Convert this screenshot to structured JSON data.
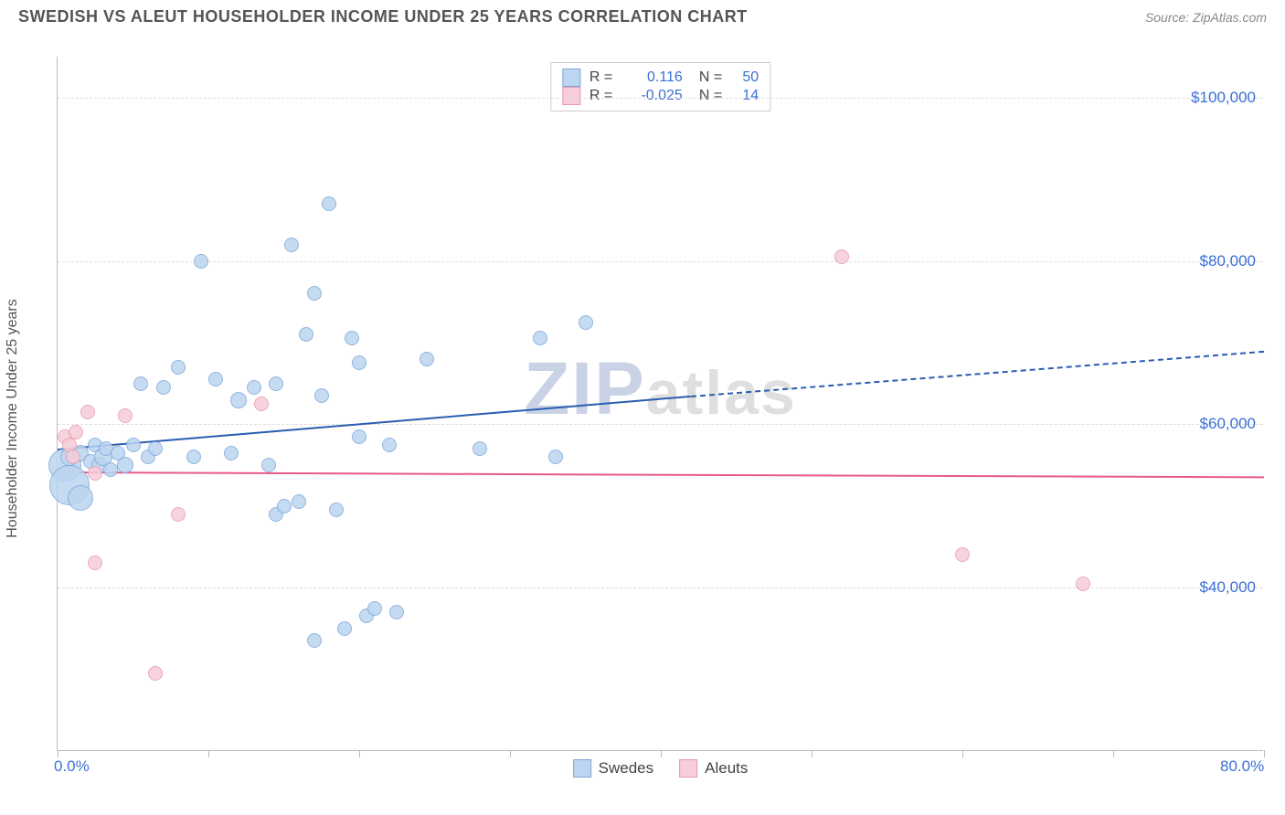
{
  "header": {
    "title": "SWEDISH VS ALEUT HOUSEHOLDER INCOME UNDER 25 YEARS CORRELATION CHART",
    "source": "Source: ZipAtlas.com",
    "watermark_z": "ZIP",
    "watermark_rest": "atlas"
  },
  "chart": {
    "type": "scatter",
    "ylabel": "Householder Income Under 25 years",
    "xlim": [
      0,
      80
    ],
    "ylim": [
      20000,
      105000
    ],
    "x_ticks": [
      0,
      10,
      20,
      30,
      40,
      50,
      60,
      70,
      80
    ],
    "x_tick_labels": {
      "0": "0.0%",
      "80": "80.0%"
    },
    "y_gridlines": [
      40000,
      60000,
      80000,
      100000
    ],
    "y_labels": {
      "40000": "$40,000",
      "60000": "$60,000",
      "80000": "$80,000",
      "100000": "$100,000"
    },
    "background_color": "#ffffff",
    "grid_color": "#dddddd",
    "axis_color": "#bbbbbb",
    "tick_label_color": "#3b6fd6",
    "ylabel_color": "#555555",
    "series": {
      "swedes": {
        "label": "Swedes",
        "fill": "#bcd5f0",
        "stroke": "#7fa9d8",
        "trend_color": "#2a5db0",
        "r_value": "0.116",
        "n_value": "50",
        "trend": {
          "x1": 0,
          "y1": 57000,
          "x2": 42,
          "y2": 63500,
          "x2_dash": 80,
          "y2_dash": 69000
        },
        "points": [
          {
            "x": 0.5,
            "y": 55000,
            "r": 18
          },
          {
            "x": 0.8,
            "y": 52500,
            "r": 22
          },
          {
            "x": 0.8,
            "y": 56000,
            "r": 10
          },
          {
            "x": 1.5,
            "y": 56500,
            "r": 9
          },
          {
            "x": 1.5,
            "y": 51000,
            "r": 14
          },
          {
            "x": 2.2,
            "y": 55500,
            "r": 8
          },
          {
            "x": 2.5,
            "y": 57500,
            "r": 8
          },
          {
            "x": 2.8,
            "y": 55000,
            "r": 9
          },
          {
            "x": 3.0,
            "y": 56000,
            "r": 10
          },
          {
            "x": 3.2,
            "y": 57000,
            "r": 8
          },
          {
            "x": 3.5,
            "y": 54500,
            "r": 8
          },
          {
            "x": 4.0,
            "y": 56500,
            "r": 8
          },
          {
            "x": 4.5,
            "y": 55000,
            "r": 9
          },
          {
            "x": 5.0,
            "y": 57500,
            "r": 8
          },
          {
            "x": 5.5,
            "y": 65000,
            "r": 8
          },
          {
            "x": 6.0,
            "y": 56000,
            "r": 8
          },
          {
            "x": 6.5,
            "y": 57000,
            "r": 8
          },
          {
            "x": 7.0,
            "y": 64500,
            "r": 8
          },
          {
            "x": 8.0,
            "y": 67000,
            "r": 8
          },
          {
            "x": 9.0,
            "y": 56000,
            "r": 8
          },
          {
            "x": 9.5,
            "y": 80000,
            "r": 8
          },
          {
            "x": 10.5,
            "y": 65500,
            "r": 8
          },
          {
            "x": 11.5,
            "y": 56500,
            "r": 8
          },
          {
            "x": 12.0,
            "y": 63000,
            "r": 9
          },
          {
            "x": 13.0,
            "y": 64500,
            "r": 8
          },
          {
            "x": 14.0,
            "y": 55000,
            "r": 8
          },
          {
            "x": 14.5,
            "y": 49000,
            "r": 8
          },
          {
            "x": 14.5,
            "y": 65000,
            "r": 8
          },
          {
            "x": 15.0,
            "y": 50000,
            "r": 8
          },
          {
            "x": 15.5,
            "y": 82000,
            "r": 8
          },
          {
            "x": 16.0,
            "y": 50500,
            "r": 8
          },
          {
            "x": 16.5,
            "y": 71000,
            "r": 8
          },
          {
            "x": 17.0,
            "y": 33500,
            "r": 8
          },
          {
            "x": 17.0,
            "y": 76000,
            "r": 8
          },
          {
            "x": 17.5,
            "y": 63500,
            "r": 8
          },
          {
            "x": 18.0,
            "y": 87000,
            "r": 8
          },
          {
            "x": 18.5,
            "y": 49500,
            "r": 8
          },
          {
            "x": 19.0,
            "y": 35000,
            "r": 8
          },
          {
            "x": 19.5,
            "y": 70500,
            "r": 8
          },
          {
            "x": 20.0,
            "y": 58500,
            "r": 8
          },
          {
            "x": 20.0,
            "y": 67500,
            "r": 8
          },
          {
            "x": 20.5,
            "y": 36500,
            "r": 8
          },
          {
            "x": 21.0,
            "y": 37500,
            "r": 8
          },
          {
            "x": 22.0,
            "y": 57500,
            "r": 8
          },
          {
            "x": 22.5,
            "y": 37000,
            "r": 8
          },
          {
            "x": 24.5,
            "y": 68000,
            "r": 8
          },
          {
            "x": 28.0,
            "y": 57000,
            "r": 8
          },
          {
            "x": 32.0,
            "y": 70500,
            "r": 8
          },
          {
            "x": 33.0,
            "y": 56000,
            "r": 8
          },
          {
            "x": 35.0,
            "y": 72500,
            "r": 8
          }
        ]
      },
      "aleuts": {
        "label": "Aleuts",
        "fill": "#f6cdd8",
        "stroke": "#e79ab0",
        "trend_color": "#e75a8a",
        "r_value": "-0.025",
        "n_value": "14",
        "trend": {
          "x1": 0,
          "y1": 54200,
          "x2": 80,
          "y2": 53600
        },
        "points": [
          {
            "x": 0.5,
            "y": 58500,
            "r": 8
          },
          {
            "x": 0.8,
            "y": 57500,
            "r": 8
          },
          {
            "x": 1.0,
            "y": 56000,
            "r": 8
          },
          {
            "x": 1.2,
            "y": 59000,
            "r": 8
          },
          {
            "x": 2.0,
            "y": 61500,
            "r": 8
          },
          {
            "x": 2.5,
            "y": 54000,
            "r": 8
          },
          {
            "x": 2.5,
            "y": 43000,
            "r": 8
          },
          {
            "x": 4.5,
            "y": 61000,
            "r": 8
          },
          {
            "x": 6.5,
            "y": 29500,
            "r": 8
          },
          {
            "x": 8.0,
            "y": 49000,
            "r": 8
          },
          {
            "x": 13.5,
            "y": 62500,
            "r": 8
          },
          {
            "x": 52.0,
            "y": 80500,
            "r": 8
          },
          {
            "x": 60.0,
            "y": 44000,
            "r": 8
          },
          {
            "x": 68.0,
            "y": 40500,
            "r": 8
          }
        ]
      }
    }
  }
}
